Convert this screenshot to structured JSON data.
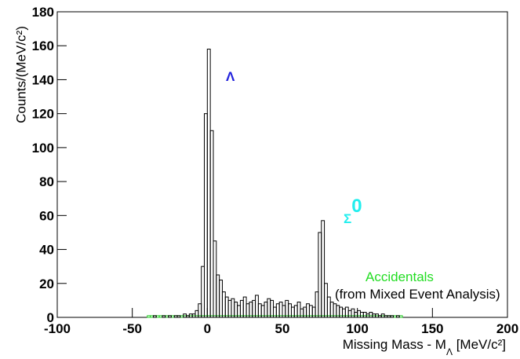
{
  "chart_data": {
    "type": "histogram",
    "bins": [
      -40,
      -38,
      -36,
      -34,
      -32,
      -30,
      -28,
      -26,
      -24,
      -22,
      -20,
      -18,
      -16,
      -14,
      -12,
      -10,
      -8,
      -6,
      -4,
      -2,
      0,
      2,
      4,
      6,
      8,
      10,
      12,
      14,
      16,
      18,
      20,
      22,
      24,
      26,
      28,
      30,
      32,
      34,
      36,
      38,
      40,
      42,
      44,
      46,
      48,
      50,
      52,
      54,
      56,
      58,
      60,
      62,
      64,
      66,
      68,
      70,
      72,
      74,
      76,
      78,
      80,
      82,
      84,
      86,
      88,
      90,
      92,
      94,
      96,
      98,
      100,
      102,
      104,
      106,
      108,
      110,
      112,
      114,
      116,
      118,
      120,
      122,
      124,
      126,
      128,
      130
    ],
    "series": [
      {
        "color": "#000000",
        "values": [
          0,
          0,
          1,
          0,
          0,
          1,
          0,
          1,
          0,
          1,
          1,
          0,
          2,
          1,
          2,
          2,
          4,
          8,
          30,
          120,
          158,
          110,
          45,
          25,
          22,
          15,
          12,
          10,
          11,
          9,
          7,
          10,
          12,
          8,
          9,
          10,
          13,
          8,
          7,
          9,
          11,
          10,
          6,
          8,
          9,
          7,
          10,
          8,
          6,
          7,
          9,
          5,
          6,
          8,
          7,
          6,
          15,
          50,
          57,
          20,
          12,
          9,
          8,
          7,
          6,
          5,
          6,
          4,
          5,
          3,
          4,
          3,
          3,
          2,
          3,
          2,
          2,
          1,
          2,
          1,
          1,
          1,
          0,
          1,
          0
        ]
      },
      {
        "name": "Accidentals",
        "color": "#22cc22",
        "values": [
          1,
          1,
          1,
          1,
          1,
          1,
          1,
          1,
          1,
          1,
          1,
          1,
          1,
          1,
          1,
          1,
          1,
          1,
          1,
          1,
          1,
          1,
          1,
          1,
          1,
          1,
          1,
          1,
          1,
          1,
          1,
          1,
          1,
          1,
          1,
          1,
          1,
          1,
          1,
          1,
          1,
          1,
          1,
          1,
          1,
          1,
          1,
          1,
          1,
          1,
          1,
          1,
          1,
          1,
          1,
          1,
          1,
          1,
          1,
          1,
          1,
          1,
          1,
          1,
          1,
          1,
          1,
          1,
          1,
          1,
          1,
          1,
          1,
          1,
          1,
          1,
          1,
          1,
          1,
          1,
          1,
          1,
          1,
          1,
          1
        ]
      }
    ],
    "annotation": "(from Mixed Event Analysis)",
    "peak_labels": [
      {
        "text": "Λ"
      },
      {
        "text": "Σ",
        "sup": "0"
      }
    ],
    "y_label": "Counts/(MeV/c²)",
    "x_label": {
      "text": "Missing Mass - M",
      "sub": "Λ",
      "rest": " [MeV/c²]"
    },
    "xlim": [
      -100,
      200
    ],
    "xticks": [
      -100,
      -50,
      0,
      50,
      100,
      150,
      200
    ],
    "ylim": [
      0,
      180
    ],
    "yticks": [
      0,
      20,
      40,
      60,
      80,
      100,
      120,
      140,
      160,
      180
    ]
  }
}
